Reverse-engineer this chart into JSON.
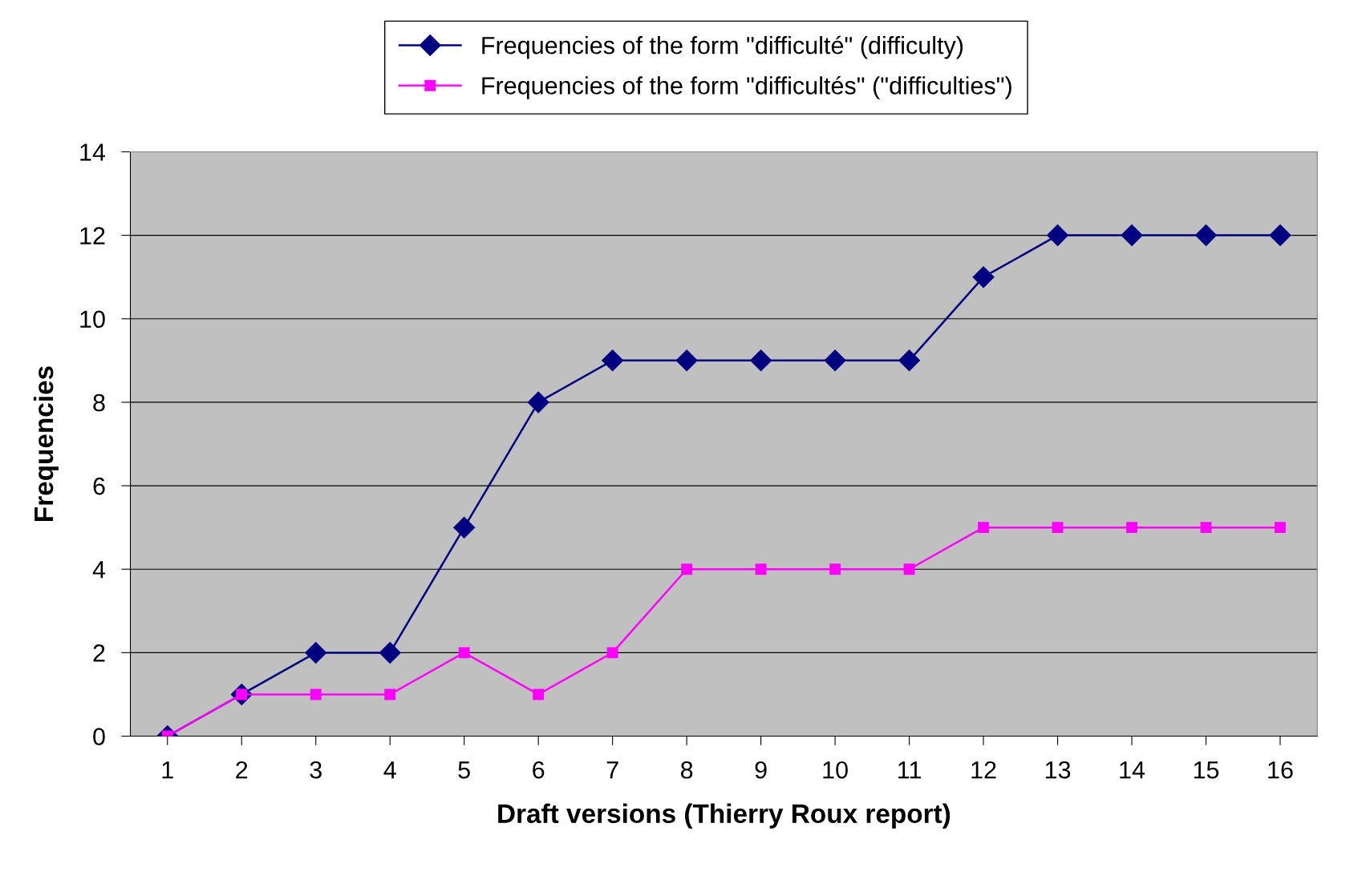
{
  "chart_data": {
    "type": "line",
    "xlabel": "Draft versions (Thierry Roux report)",
    "ylabel": "Frequencies",
    "categories": [
      "1",
      "2",
      "3",
      "4",
      "5",
      "6",
      "7",
      "8",
      "9",
      "10",
      "11",
      "12",
      "13",
      "14",
      "15",
      "16"
    ],
    "series": [
      {
        "name": "Frequencies of the form \"difficulté\" (difficulty)",
        "color": "#000080",
        "marker": "diamond",
        "values": [
          0,
          1,
          2,
          2,
          5,
          8,
          9,
          9,
          9,
          9,
          9,
          11,
          12,
          12,
          12,
          12
        ]
      },
      {
        "name": "Frequencies of the form \"difficultés\" (\"difficulties\")",
        "color": "#ff00ff",
        "marker": "square",
        "values": [
          0,
          1,
          1,
          1,
          2,
          1,
          2,
          4,
          4,
          4,
          4,
          5,
          5,
          5,
          5,
          5
        ]
      }
    ],
    "ylim": [
      0,
      14
    ],
    "yticks": [
      0,
      2,
      4,
      6,
      8,
      10,
      12,
      14
    ],
    "grid": "y",
    "legend": "top",
    "line_style": "solid"
  }
}
